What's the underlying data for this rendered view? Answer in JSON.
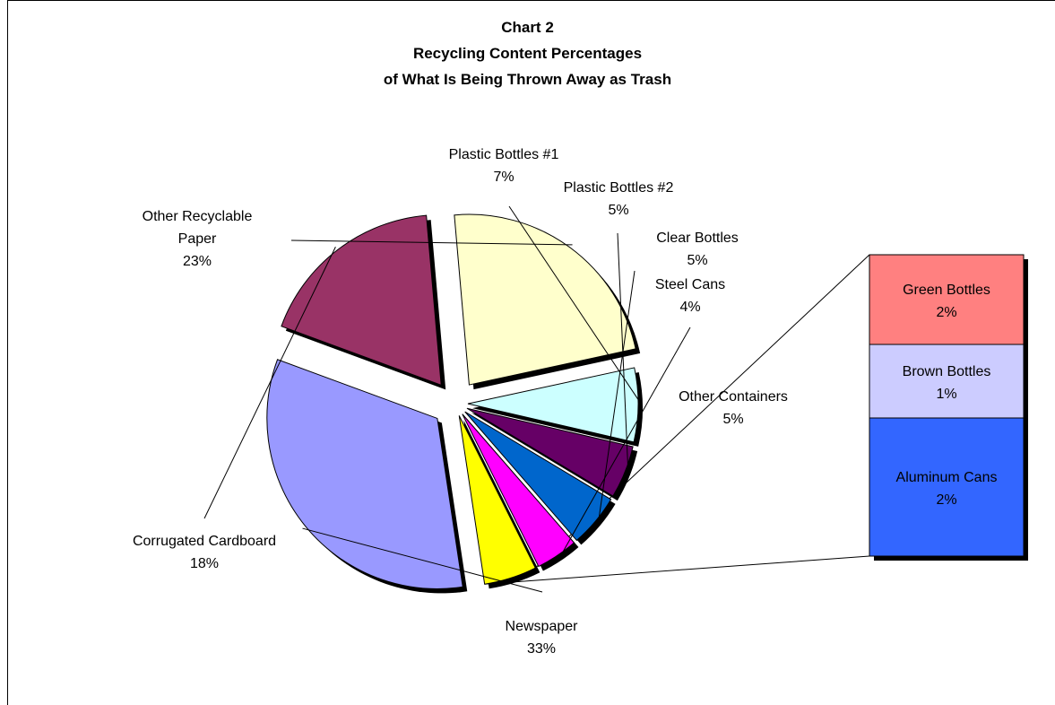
{
  "chart_data": {
    "type": "pie",
    "title": [
      "Chart 2",
      "Recycling Content Percentages",
      "of What Is Being Thrown Away as Trash"
    ],
    "slices": [
      {
        "label": "Other Recyclable Paper",
        "value_label": "23%",
        "value": 23,
        "color": "#ffffcc"
      },
      {
        "label": "Plastic Bottles #1",
        "value_label": "7%",
        "value": 7,
        "color": "#ccffff"
      },
      {
        "label": "Plastic Bottles #2",
        "value_label": "5%",
        "value": 5,
        "color": "#660066"
      },
      {
        "label": "Clear Bottles",
        "value_label": "5%",
        "value": 5,
        "color": "#0066cc"
      },
      {
        "label": "Steel Cans",
        "value_label": "4%",
        "value": 4,
        "color": "#ff00ff"
      },
      {
        "label": "Other Containers",
        "value_label": "5%",
        "value": 5,
        "color": "#ffff00"
      },
      {
        "label": "Newspaper",
        "value_label": "33%",
        "value": 33,
        "color": "#9999ff"
      },
      {
        "label": "Corrugated Cardboard",
        "value_label": "18%",
        "value": 18,
        "color": "#993366"
      }
    ],
    "breakdown": {
      "parent": "Other Containers",
      "items": [
        {
          "label": "Green Bottles",
          "value_label": "2%",
          "value": 2,
          "color": "#ff8080"
        },
        {
          "label": "Brown Bottles",
          "value_label": "1%",
          "value": 1,
          "color": "#ccccff"
        },
        {
          "label": "Aluminum Cans",
          "value_label": "2%",
          "value": 2,
          "color": "#3366ff"
        }
      ]
    }
  }
}
